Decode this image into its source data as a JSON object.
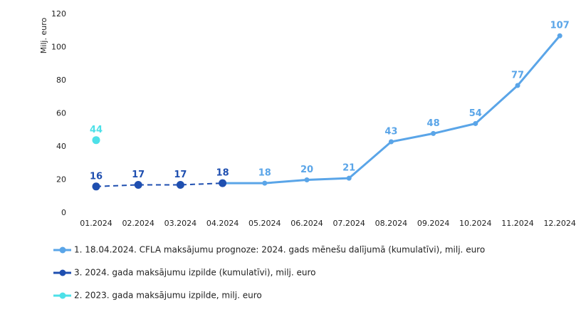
{
  "chart_data": {
    "type": "line",
    "y_label": "Milj. euro",
    "categories": [
      "01.2024",
      "02.2024",
      "03.2024",
      "04.2024",
      "05.2024",
      "06.2024",
      "07.2024",
      "08.2024",
      "09.2024",
      "10.2024",
      "11.2024",
      "12.2024"
    ],
    "series": [
      {
        "name": "1. 18.04.2024. CFLA maksājumu prognoze: 2024. gads mēnešu dalījumā (kumulatīvi), milj. euro",
        "color": "#5aa5e8",
        "dashed": false,
        "values": [
          null,
          null,
          null,
          18,
          18,
          20,
          21,
          43,
          48,
          54,
          77,
          107
        ],
        "value_labels": [
          null,
          null,
          null,
          null,
          "18",
          "20",
          "21",
          "43",
          "48",
          "54",
          "77",
          "107"
        ]
      },
      {
        "name": "3. 2024. gada maksājumu izpilde (kumulatīvi), milj. euro",
        "color": "#1f4fb0",
        "dashed": true,
        "values": [
          16,
          17,
          17,
          18,
          null,
          null,
          null,
          null,
          null,
          null,
          null,
          null
        ],
        "value_labels": [
          "16",
          "17",
          "17",
          "18",
          null,
          null,
          null,
          null,
          null,
          null,
          null,
          null
        ]
      },
      {
        "name": "2. 2023. gada maksājumu izpilde, milj. euro",
        "color": "#4de0e8",
        "dashed": false,
        "values": [
          44,
          null,
          null,
          null,
          null,
          null,
          null,
          null,
          null,
          null,
          null,
          null
        ],
        "value_labels": [
          "44",
          null,
          null,
          null,
          null,
          null,
          null,
          null,
          null,
          null,
          null,
          null
        ]
      }
    ],
    "ylim": [
      0,
      120
    ],
    "yticks": [
      0,
      20,
      40,
      60,
      80,
      100,
      120
    ],
    "grid": false
  }
}
